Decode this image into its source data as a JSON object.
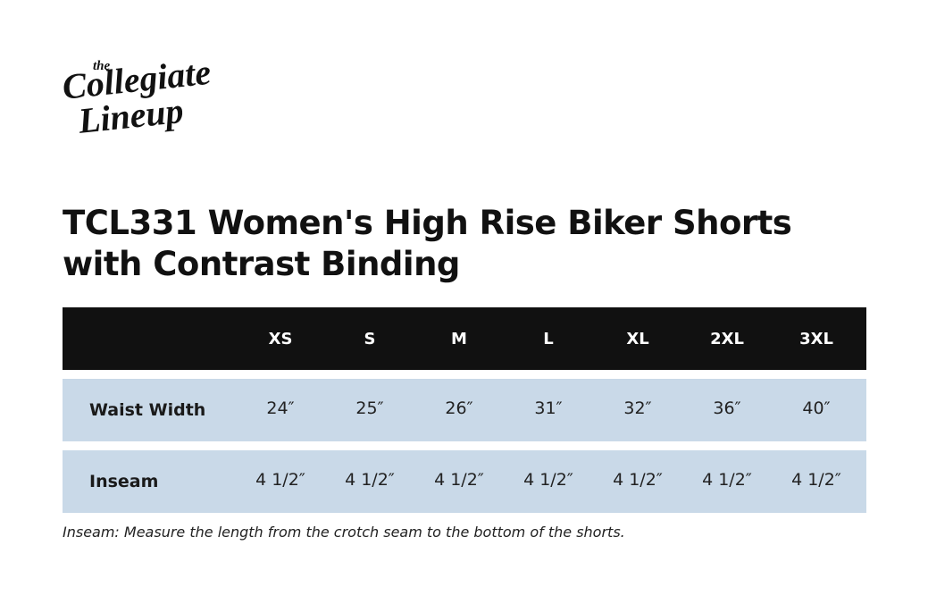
{
  "logo": {
    "top": "the",
    "line1": "Collegiate",
    "line2": "Lineup"
  },
  "title": [
    "TCL331 Women's High Rise Biker Shorts",
    "with Contrast Binding"
  ],
  "table": {
    "header": [
      "XS",
      "S",
      "M",
      "L",
      "XL",
      "2XL",
      "3XL"
    ],
    "rows": [
      {
        "label": "Waist Width",
        "cells": [
          "24″",
          "25″",
          "26″",
          "31″",
          "32″",
          "36″",
          "40″"
        ]
      },
      {
        "label": "Inseam",
        "cells": [
          "4 1/2″",
          "4 1/2″",
          "4 1/2″",
          "4 1/2″",
          "4 1/2″",
          "4 1/2″",
          "4 1/2″"
        ]
      }
    ]
  },
  "footnote": "Inseam: Measure the length from the crotch seam to the bottom of the shorts."
}
